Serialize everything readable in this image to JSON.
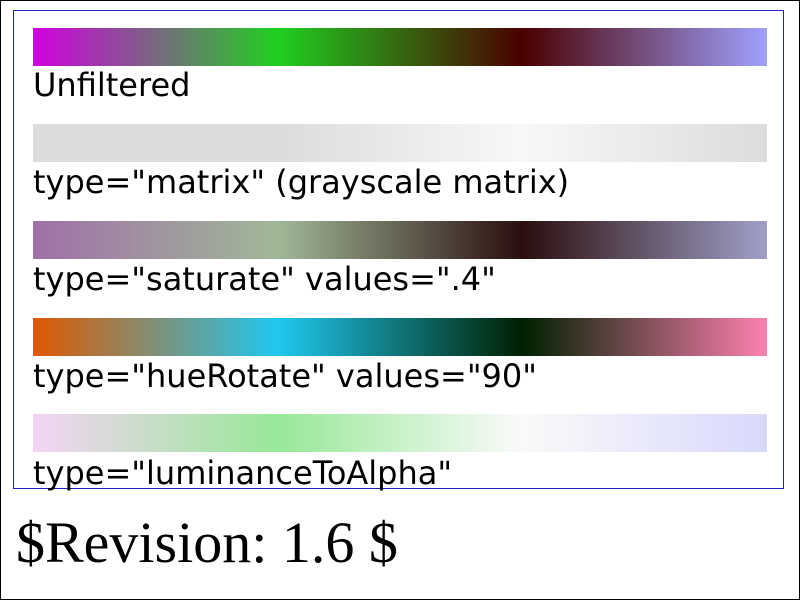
{
  "samples": [
    {
      "id": "unfiltered",
      "caption": "Unfiltered",
      "gradient_stops": [
        "#d000e0",
        "#20d020",
        "#4a0000",
        "#a0a0ff"
      ]
    },
    {
      "id": "matrix",
      "caption": "type=\"matrix\" (grayscale matrix)",
      "gradient_stops": [
        "#dcdcdc",
        "#dcdcdc",
        "#f8f8f8",
        "#dcdcdc"
      ]
    },
    {
      "id": "saturate",
      "caption": "type=\"saturate\" values=\".4\"",
      "gradient_stops": [
        "#a070a8",
        "#a0b898",
        "#2a0e0e",
        "#a0a0c8"
      ]
    },
    {
      "id": "huerotate",
      "caption": "type=\"hueRotate\" values=\"90\"",
      "gradient_stops": [
        "#e05800",
        "#20c8f0",
        "#002000",
        "#ff80b0"
      ]
    },
    {
      "id": "luminance",
      "caption": "type=\"luminanceToAlpha\"",
      "gradient_stops": [
        "#f4d4f4",
        "#98e898",
        "#fafafa",
        "#d8d8fc"
      ]
    }
  ],
  "footer": {
    "revision": "$Revision: 1.6 $"
  }
}
